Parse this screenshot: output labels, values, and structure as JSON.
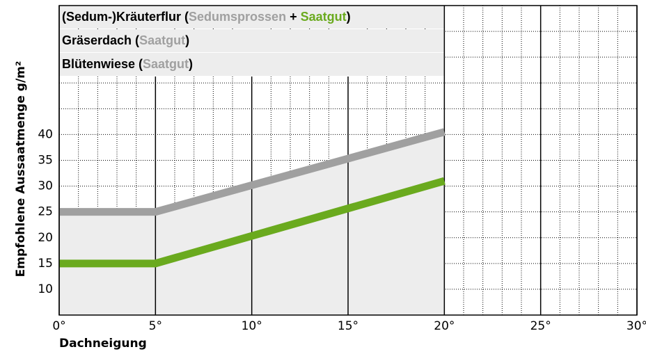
{
  "chart_data": {
    "type": "line",
    "x_label": "Dachneigung",
    "y_label": "Empfohlene Aussaatmenge g/m²",
    "x": [
      0,
      5,
      20
    ],
    "series": [
      {
        "name": "Sedumsprossen",
        "color": "#a0a0a0",
        "values": [
          25,
          25,
          40.5
        ]
      },
      {
        "name": "Saatgut",
        "color": "#6aaa1e",
        "values": [
          15,
          15,
          31
        ]
      }
    ],
    "legend_rows": [
      [
        {
          "text": "(Sedum-)Kräuterflur (",
          "color": "#000000"
        },
        {
          "series": 0
        },
        {
          "text": " + ",
          "color": "#000000"
        },
        {
          "series": 1
        },
        {
          "text": ")",
          "color": "#000000"
        }
      ],
      [
        {
          "text": "Gräserdach (",
          "color": "#000000"
        },
        {
          "text": "Saatgut",
          "color": "#a0a0a0"
        },
        {
          "text": ")",
          "color": "#000000"
        }
      ],
      [
        {
          "text": "Blütenwiese (",
          "color": "#000000"
        },
        {
          "text": "Saatgut",
          "color": "#a0a0a0"
        },
        {
          "text": ")",
          "color": "#000000"
        }
      ]
    ],
    "area_color": "#ededed",
    "xlim": [
      0,
      30
    ],
    "ylim": [
      5,
      65
    ],
    "xticks": [
      {
        "value": 0,
        "label": "0°"
      },
      {
        "value": 5,
        "label": "5°"
      },
      {
        "value": 10,
        "label": "10°"
      },
      {
        "value": 15,
        "label": "15°"
      },
      {
        "value": 20,
        "label": "20°"
      },
      {
        "value": 25,
        "label": "25°"
      },
      {
        "value": 30,
        "label": "30°"
      }
    ],
    "yticks": [
      10,
      15,
      20,
      25,
      30,
      35,
      40
    ],
    "xgrid": [
      1,
      2,
      3,
      4,
      6,
      7,
      8,
      9,
      11,
      12,
      13,
      14,
      16,
      17,
      18,
      19,
      21,
      22,
      23,
      24,
      26,
      27,
      28,
      29
    ],
    "ygrid": [
      10,
      15,
      20,
      25,
      30,
      35,
      40,
      45,
      50,
      55,
      60
    ],
    "grid": true
  }
}
